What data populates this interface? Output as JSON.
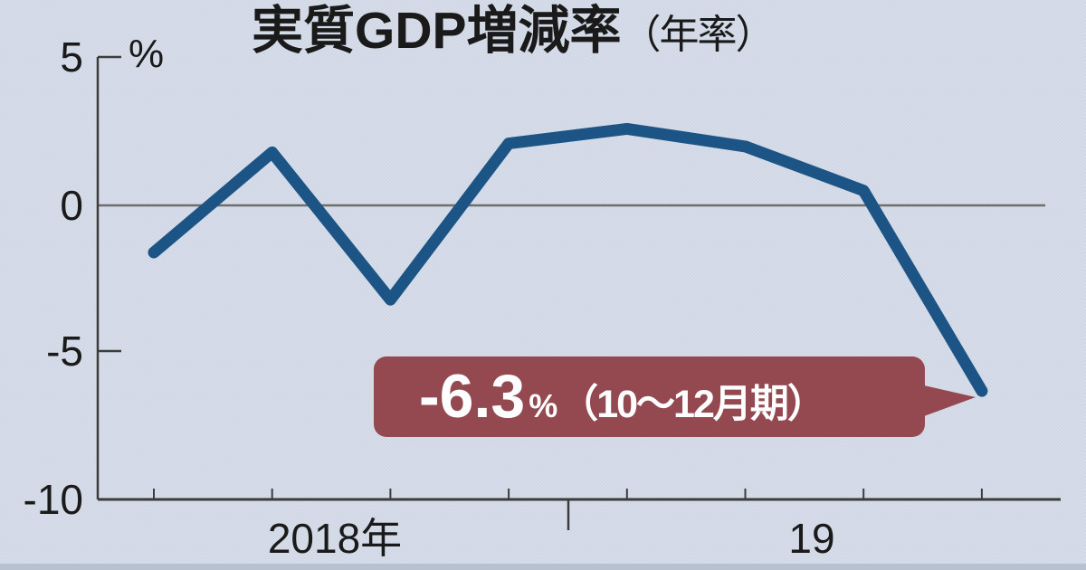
{
  "title": {
    "main": "実質GDP増減率",
    "suffix": "（年率）"
  },
  "y_axis": {
    "unit": "%",
    "ticks": [
      "5",
      "0",
      "-5",
      "-10"
    ]
  },
  "x_axis": {
    "labels": [
      "2018年",
      "19"
    ]
  },
  "callout": {
    "value": "-6.3",
    "unit": "%",
    "period": "（10〜12月期）"
  },
  "colors": {
    "line": "#1d5486",
    "callout_bg": "#944850",
    "callout_text": "#ffffff",
    "background": "#d1d8e5",
    "axis": "#3c3c3c",
    "zero_line": "#6e6e6e",
    "text": "#1a1a1a"
  },
  "chart_data": {
    "type": "line",
    "title": "実質GDP増減率（年率）",
    "ylabel": "%",
    "categories": [
      "2018Q1",
      "2018Q2",
      "2018Q3",
      "2018Q4",
      "2019Q1",
      "2019Q2",
      "2019Q3",
      "2019Q4"
    ],
    "values": [
      -1.6,
      1.8,
      -3.2,
      2.1,
      2.6,
      2.0,
      0.5,
      -6.3
    ],
    "ylim": [
      -10,
      5
    ],
    "y_ticks": [
      5,
      0,
      -5,
      -10
    ],
    "x_tick_labels": [
      "2018年",
      "19"
    ],
    "grid": "zero-line-only",
    "legend": false,
    "annotation": {
      "text": "-6.3%（10〜12月期）",
      "target": "2019Q4",
      "value": -6.3
    }
  }
}
